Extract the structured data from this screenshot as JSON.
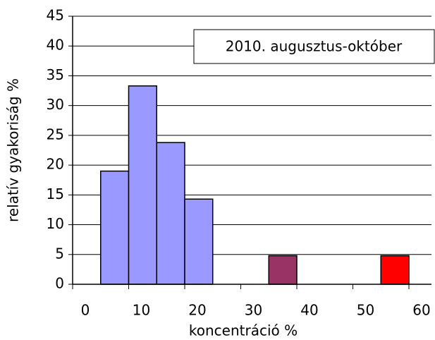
{
  "chart_data": {
    "type": "histogram",
    "annotation": "2010. augusztus-október",
    "xlabel": "koncentráció %",
    "ylabel": "relatív gyakoriság %",
    "bins": [
      5,
      10,
      15,
      20,
      25,
      30,
      35,
      40,
      45,
      50,
      55,
      60
    ],
    "values": [
      19.0,
      33.3,
      23.8,
      14.3,
      0,
      0,
      4.8,
      0,
      0,
      0,
      4.8
    ],
    "colors": [
      "#9999ff",
      "#9999ff",
      "#9999ff",
      "#9999ff",
      "#9999ff",
      "#9999ff",
      "#993366",
      "#9999ff",
      "#9999ff",
      "#9999ff",
      "#ff0000"
    ],
    "xlim": [
      0,
      60
    ],
    "xticks": [
      0,
      10,
      20,
      30,
      40,
      50,
      60
    ],
    "ylim": [
      0,
      45
    ],
    "yticks": [
      0,
      5,
      10,
      15,
      20,
      25,
      30,
      35,
      40,
      45
    ],
    "grid": true
  }
}
